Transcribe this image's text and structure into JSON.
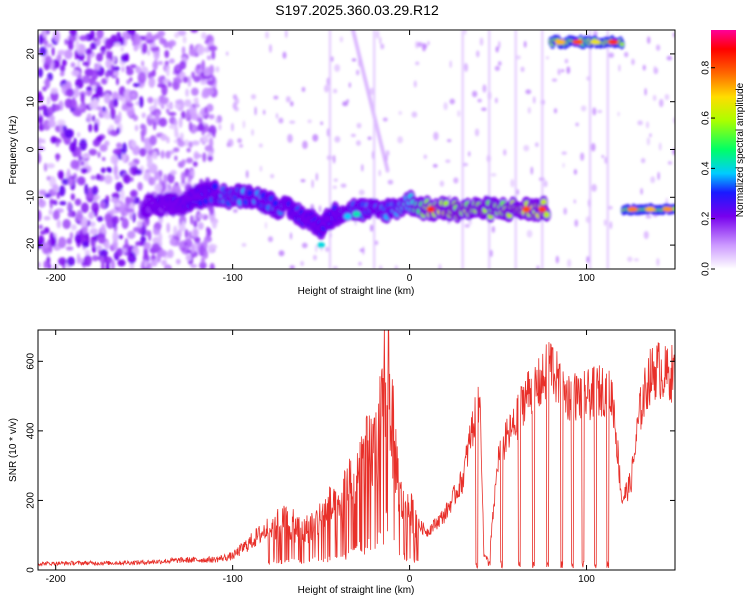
{
  "title": "S197.2025.360.03.29.R12",
  "chart_data": [
    {
      "type": "heatmap",
      "xlabel": "Height of straight line (km)",
      "ylabel": "Frequency (Hz)",
      "xlim": [
        -210,
        150
      ],
      "ylim": [
        -25,
        25
      ],
      "xticks": [
        -200,
        -100,
        0,
        100
      ],
      "yticks": [
        -20,
        -10,
        0,
        10,
        20
      ],
      "colorbar": {
        "label": "Normalized spectral amplitude",
        "range": [
          0,
          0.95
        ],
        "ticks": [
          "0.0",
          "0.2",
          "0.4",
          "0.6",
          "0.8"
        ],
        "tick_values": [
          0,
          0.2,
          0.4,
          0.6,
          0.8
        ]
      },
      "ridge": [
        {
          "x": -150,
          "f": -12,
          "a": 0.2
        },
        {
          "x": -140,
          "f": -12,
          "a": 0.22
        },
        {
          "x": -130,
          "f": -11.5,
          "a": 0.25
        },
        {
          "x": -120,
          "f": -10,
          "a": 0.28
        },
        {
          "x": -110,
          "f": -9,
          "a": 0.32
        },
        {
          "x": -100,
          "f": -10,
          "a": 0.38
        },
        {
          "x": -90,
          "f": -9.5,
          "a": 0.35
        },
        {
          "x": -80,
          "f": -11,
          "a": 0.34
        },
        {
          "x": -70,
          "f": -12.5,
          "a": 0.33
        },
        {
          "x": -60,
          "f": -14,
          "a": 0.3
        },
        {
          "x": -50,
          "f": -16,
          "a": 0.28
        },
        {
          "x": -40,
          "f": -13,
          "a": 0.3
        },
        {
          "x": -30,
          "f": -12.5,
          "a": 0.32
        },
        {
          "x": -20,
          "f": -13,
          "a": 0.34
        },
        {
          "x": -10,
          "f": -12.5,
          "a": 0.36
        },
        {
          "x": 0,
          "f": -11,
          "a": 0.4
        },
        {
          "x": 10,
          "f": -12.5,
          "a": 0.62
        },
        {
          "x": 20,
          "f": -12.5,
          "a": 0.65
        },
        {
          "x": 30,
          "f": -12.5,
          "a": 0.62
        },
        {
          "x": 40,
          "f": -12.5,
          "a": 0.6
        },
        {
          "x": 50,
          "f": -12.5,
          "a": 0.58
        },
        {
          "x": 60,
          "f": -12.5,
          "a": 0.62
        },
        {
          "x": 70,
          "f": -12.5,
          "a": 0.66
        },
        {
          "x": 78,
          "f": -12.5,
          "a": 0.62
        }
      ],
      "upper_band": [
        {
          "x": 85,
          "f": 22.5,
          "a": 0.75
        },
        {
          "x": 95,
          "f": 22.5,
          "a": 0.85
        },
        {
          "x": 105,
          "f": 22.5,
          "a": 0.7
        },
        {
          "x": 115,
          "f": 22.5,
          "a": 0.88
        }
      ],
      "lower_band": [
        {
          "x": 126,
          "f": -12.5,
          "a": 0.8
        },
        {
          "x": 136,
          "f": -12.5,
          "a": 0.75
        },
        {
          "x": 146,
          "f": -12.5,
          "a": 0.78
        }
      ],
      "hot_spots": [
        {
          "x": -30,
          "f": -13.5,
          "a": 0.45
        },
        {
          "x": -50,
          "f": -20,
          "a": 0.42
        },
        {
          "x": -35,
          "f": -14,
          "a": 0.4
        },
        {
          "x": 12,
          "f": -12.5,
          "a": 0.88
        },
        {
          "x": 66,
          "f": -12.5,
          "a": 0.85
        },
        {
          "x": 75,
          "f": -12.5,
          "a": 0.86
        }
      ]
    },
    {
      "type": "line",
      "xlabel": "Height of straight line (km)",
      "ylabel": "SNR (10 * v/v)",
      "xlim": [
        -210,
        150
      ],
      "ylim": [
        0,
        690
      ],
      "xticks": [
        -200,
        -100,
        0,
        100
      ],
      "yticks": [
        0,
        200,
        400,
        600
      ],
      "series": [
        {
          "name": "SNR",
          "color": "#e8302a",
          "x": [
            -210,
            -190,
            -170,
            -150,
            -130,
            -110,
            -100,
            -90,
            -80,
            -70,
            -60,
            -50,
            -45,
            -40,
            -35,
            -30,
            -25,
            -20,
            -15,
            -13,
            -10,
            -5,
            0,
            5,
            10,
            20,
            30,
            35,
            40,
            42,
            45,
            50,
            55,
            60,
            65,
            70,
            75,
            80,
            85,
            90,
            100,
            110,
            115,
            120,
            125,
            130,
            135,
            140,
            145,
            150
          ],
          "y": [
            18,
            20,
            20,
            22,
            28,
            30,
            40,
            80,
            120,
            140,
            110,
            150,
            180,
            160,
            250,
            280,
            320,
            350,
            440,
            690,
            420,
            200,
            170,
            130,
            110,
            160,
            260,
            400,
            480,
            40,
            30,
            320,
            380,
            420,
            500,
            520,
            540,
            600,
            520,
            500,
            500,
            520,
            490,
            200,
            250,
            450,
            550,
            580,
            560,
            570
          ]
        }
      ],
      "dropouts": [
        38,
        45,
        52,
        62,
        70,
        78,
        86,
        92,
        98,
        105,
        112
      ]
    }
  ]
}
